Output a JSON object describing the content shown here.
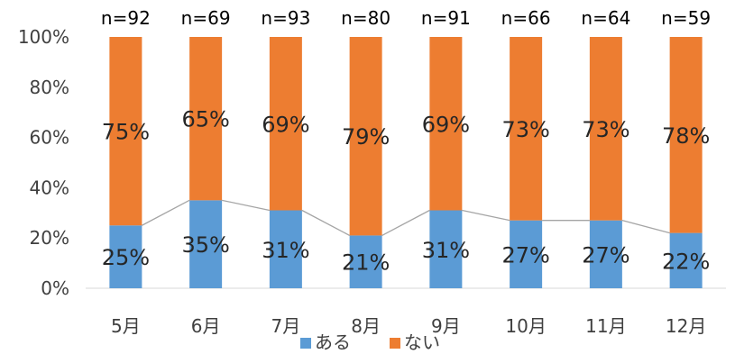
{
  "chart_data": {
    "type": "bar",
    "stacked": true,
    "percent_stacked": true,
    "categories": [
      "5月",
      "6月",
      "7月",
      "8月",
      "9月",
      "10月",
      "11月",
      "12月"
    ],
    "counts": [
      "n=92",
      "n=69",
      "n=93",
      "n=80",
      "n=91",
      "n=66",
      "n=64",
      "n=59"
    ],
    "series": [
      {
        "name": "ある",
        "values": [
          25,
          35,
          31,
          21,
          31,
          27,
          27,
          22
        ],
        "color": "#5b9bd5"
      },
      {
        "name": "ない",
        "values": [
          75,
          65,
          69,
          79,
          69,
          73,
          73,
          78
        ],
        "color": "#ed7d31"
      }
    ],
    "value_labels": {
      "ある": [
        "25%",
        "35%",
        "31%",
        "21%",
        "31%",
        "27%",
        "27%",
        "22%"
      ],
      "ない": [
        "75%",
        "65%",
        "69%",
        "79%",
        "69%",
        "73%",
        "73%",
        "78%"
      ]
    },
    "y_ticks": [
      "0%",
      "20%",
      "40%",
      "60%",
      "80%",
      "100%"
    ],
    "ylim": [
      0,
      100
    ],
    "series_lines": true,
    "legend_position": "bottom",
    "grid": false,
    "title": "",
    "xlabel": "",
    "ylabel": ""
  }
}
